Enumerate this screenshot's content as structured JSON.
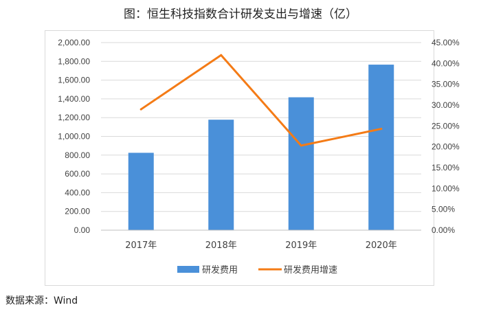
{
  "title": "图：恒生科技指数合计研发支出与增速（亿）",
  "source": "数据来源：Wind",
  "chart_data": {
    "type": "bar+line",
    "categories": [
      "2017年",
      "2018年",
      "2019年",
      "2020年"
    ],
    "series": [
      {
        "name": "研发费用",
        "type": "bar",
        "axis": "left",
        "color": "#4a90d9",
        "values": [
          825,
          1178,
          1417,
          1765
        ]
      },
      {
        "name": "研发费用增速",
        "type": "line",
        "axis": "right",
        "color": "#f47b16",
        "values": [
          0.29,
          0.42,
          0.203,
          0.243
        ]
      }
    ],
    "left_axis": {
      "min": 0,
      "max": 2000,
      "step": 200,
      "ticks": [
        "0.00",
        "200.00",
        "400.00",
        "600.00",
        "800.00",
        "1,000.00",
        "1,200.00",
        "1,400.00",
        "1,600.00",
        "1,800.00",
        "2,000.00"
      ]
    },
    "right_axis": {
      "min": 0,
      "max": 0.45,
      "step": 0.05,
      "ticks": [
        "0.00%",
        "5.00%",
        "10.00%",
        "15.00%",
        "20.00%",
        "25.00%",
        "30.00%",
        "35.00%",
        "40.00%",
        "45.00%"
      ]
    },
    "grid": true,
    "legend": "bottom"
  }
}
